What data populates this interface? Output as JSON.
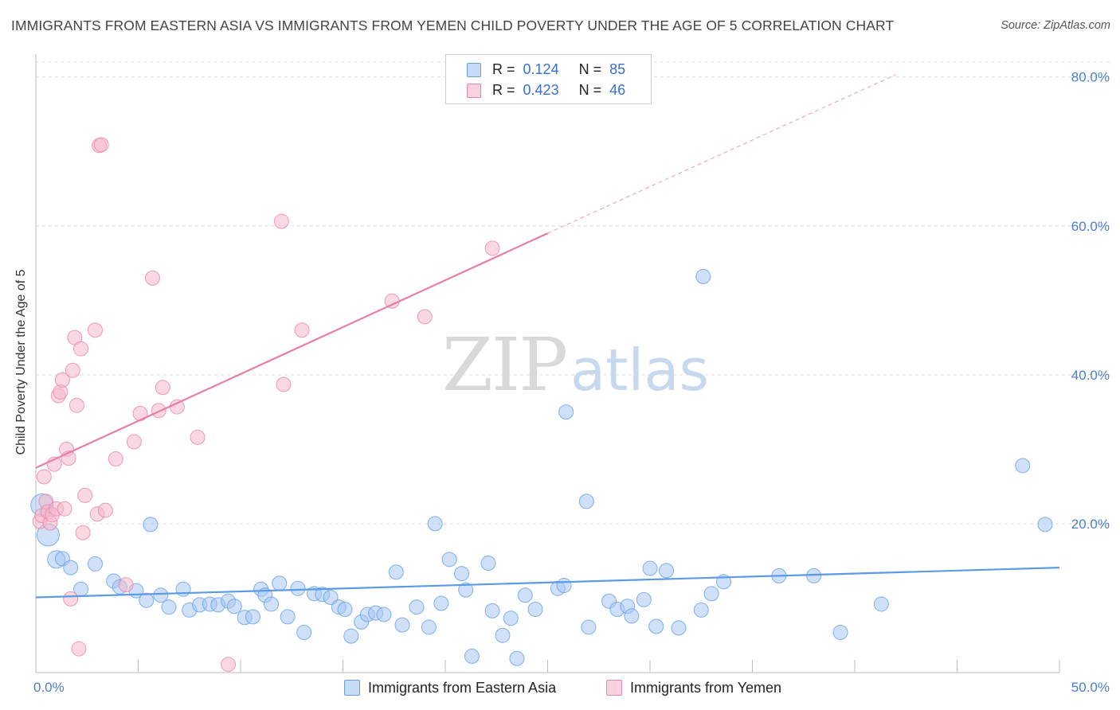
{
  "header": {
    "title": "IMMIGRANTS FROM EASTERN ASIA VS IMMIGRANTS FROM YEMEN CHILD POVERTY UNDER THE AGE OF 5 CORRELATION CHART",
    "source": "Source: ZipAtlas.com"
  },
  "watermark": {
    "zip": "ZIP",
    "atlas": "atlas"
  },
  "legend": {
    "rows": [
      {
        "r_label": "R =",
        "r_value": "0.124",
        "n_label": "N =",
        "n_value": "85",
        "color": "#a7c7f2"
      },
      {
        "r_label": "R =",
        "r_value": "0.423",
        "n_label": "N =",
        "n_value": "46",
        "color": "#f6b8cb"
      }
    ]
  },
  "bottom_legend": {
    "items": [
      {
        "label": "Immigrants from Eastern Asia",
        "color": "#a7c7f2"
      },
      {
        "label": "Immigrants from Yemen",
        "color": "#f6b8cb"
      }
    ]
  },
  "chart_data": {
    "type": "scatter",
    "title": "IMMIGRANTS FROM EASTERN ASIA VS IMMIGRANTS FROM YEMEN CHILD POVERTY UNDER THE AGE OF 5 CORRELATION CHART",
    "xlabel": "",
    "ylabel": "Child Poverty Under the Age of 5",
    "xlim": [
      0,
      50
    ],
    "ylim": [
      0,
      82
    ],
    "x_tick_labels": [
      "0.0%",
      "50.0%"
    ],
    "y_ticks": [
      20,
      40,
      60,
      80
    ],
    "y_tick_labels": [
      "20.0%",
      "40.0%",
      "60.0%",
      "80.0%"
    ],
    "grid": true,
    "legend_position": "top-center",
    "series": [
      {
        "name": "Immigrants from Eastern Asia",
        "color": "#5b9be6",
        "fill": "#a7c7f2",
        "r": 0.124,
        "n": 85,
        "trend": {
          "x": [
            0,
            50
          ],
          "y": [
            10.1,
            14.1
          ],
          "dashed_extension": false
        },
        "points": [
          [
            0.3,
            22.5,
            14
          ],
          [
            0.6,
            18.5,
            14
          ],
          [
            1.0,
            15.2,
            11
          ],
          [
            1.3,
            15.3,
            9
          ],
          [
            1.7,
            14.1,
            9
          ],
          [
            2.2,
            11.2,
            9
          ],
          [
            2.9,
            14.6,
            9
          ],
          [
            3.8,
            12.3,
            9
          ],
          [
            4.1,
            11.5,
            9
          ],
          [
            4.9,
            11.0,
            9
          ],
          [
            5.4,
            9.7,
            9
          ],
          [
            5.6,
            19.9,
            9
          ],
          [
            6.1,
            10.4,
            9
          ],
          [
            6.5,
            8.8,
            9
          ],
          [
            7.2,
            11.2,
            9
          ],
          [
            7.5,
            8.4,
            9
          ],
          [
            8.0,
            9.1,
            9
          ],
          [
            8.5,
            9.2,
            9
          ],
          [
            8.9,
            9.1,
            9
          ],
          [
            9.4,
            9.6,
            9
          ],
          [
            9.7,
            8.9,
            9
          ],
          [
            10.2,
            7.4,
            9
          ],
          [
            10.6,
            7.5,
            9
          ],
          [
            11.0,
            11.2,
            9
          ],
          [
            11.2,
            10.4,
            9
          ],
          [
            11.5,
            9.2,
            9
          ],
          [
            11.9,
            12.0,
            9
          ],
          [
            12.3,
            7.5,
            9
          ],
          [
            12.8,
            11.3,
            9
          ],
          [
            13.1,
            5.4,
            9
          ],
          [
            13.6,
            10.6,
            9
          ],
          [
            14.0,
            10.5,
            9
          ],
          [
            14.4,
            10.1,
            9
          ],
          [
            14.8,
            8.8,
            9
          ],
          [
            15.1,
            8.5,
            9
          ],
          [
            15.4,
            4.9,
            9
          ],
          [
            15.9,
            6.8,
            9
          ],
          [
            16.2,
            7.8,
            9
          ],
          [
            16.6,
            8.0,
            9
          ],
          [
            17.0,
            7.8,
            9
          ],
          [
            17.6,
            13.5,
            9
          ],
          [
            17.9,
            6.4,
            9
          ],
          [
            18.6,
            8.8,
            9
          ],
          [
            19.2,
            6.1,
            9
          ],
          [
            19.5,
            20.0,
            9
          ],
          [
            19.8,
            9.3,
            9
          ],
          [
            20.2,
            15.2,
            9
          ],
          [
            20.8,
            13.3,
            9
          ],
          [
            21.0,
            11.1,
            9
          ],
          [
            21.3,
            2.2,
            9
          ],
          [
            22.1,
            14.7,
            9
          ],
          [
            22.3,
            8.3,
            9
          ],
          [
            22.8,
            5.0,
            9
          ],
          [
            23.2,
            7.3,
            9
          ],
          [
            23.5,
            1.9,
            9
          ],
          [
            23.9,
            10.4,
            9
          ],
          [
            24.4,
            8.5,
            9
          ],
          [
            25.5,
            11.3,
            9
          ],
          [
            25.8,
            11.7,
            9
          ],
          [
            25.9,
            35.0,
            9
          ],
          [
            26.9,
            23.0,
            9
          ],
          [
            27.0,
            6.1,
            9
          ],
          [
            28.0,
            9.6,
            9
          ],
          [
            28.4,
            8.5,
            9
          ],
          [
            28.9,
            8.9,
            9
          ],
          [
            29.1,
            7.6,
            9
          ],
          [
            29.7,
            9.8,
            9
          ],
          [
            30.0,
            14.0,
            9
          ],
          [
            30.3,
            6.2,
            9
          ],
          [
            30.8,
            13.7,
            9
          ],
          [
            31.4,
            6.0,
            9
          ],
          [
            32.5,
            8.4,
            9
          ],
          [
            32.6,
            53.2,
            9
          ],
          [
            33.0,
            10.6,
            9
          ],
          [
            33.6,
            12.2,
            9
          ],
          [
            36.3,
            13.0,
            9
          ],
          [
            38.0,
            13.0,
            9
          ],
          [
            39.3,
            5.4,
            9
          ],
          [
            41.3,
            9.2,
            9
          ],
          [
            48.2,
            27.8,
            9
          ],
          [
            49.3,
            19.9,
            9
          ]
        ]
      },
      {
        "name": "Immigrants from Yemen",
        "color": "#e77fa3",
        "fill": "#f6b8cb",
        "r": 0.423,
        "n": 46,
        "trend": {
          "x": [
            0,
            25
          ],
          "y": [
            27.5,
            59.0
          ],
          "dashed_x": [
            25,
            42
          ],
          "dashed_y": [
            59.0,
            80.3
          ],
          "dashed_extension": true
        },
        "points": [
          [
            0.2,
            20.3,
            9
          ],
          [
            0.3,
            21.1,
            9
          ],
          [
            0.4,
            26.3,
            9
          ],
          [
            0.5,
            23.0,
            9
          ],
          [
            0.6,
            21.6,
            9
          ],
          [
            0.7,
            20.1,
            9
          ],
          [
            0.8,
            21.2,
            9
          ],
          [
            0.9,
            28.0,
            9
          ],
          [
            1.0,
            22.0,
            9
          ],
          [
            1.1,
            37.2,
            9
          ],
          [
            1.2,
            37.7,
            9
          ],
          [
            1.3,
            39.3,
            9
          ],
          [
            1.4,
            22.0,
            9
          ],
          [
            1.5,
            30.0,
            9
          ],
          [
            1.6,
            28.8,
            9
          ],
          [
            1.7,
            9.9,
            9
          ],
          [
            1.8,
            40.6,
            9
          ],
          [
            1.9,
            45.0,
            9
          ],
          [
            2.0,
            35.9,
            9
          ],
          [
            2.1,
            3.2,
            9
          ],
          [
            2.2,
            43.5,
            9
          ],
          [
            2.3,
            18.8,
            9
          ],
          [
            2.4,
            23.8,
            9
          ],
          [
            2.9,
            46.0,
            9
          ],
          [
            3.0,
            21.3,
            9
          ],
          [
            3.1,
            70.8,
            9
          ],
          [
            3.2,
            70.9,
            9
          ],
          [
            3.4,
            21.8,
            9
          ],
          [
            3.9,
            28.7,
            9
          ],
          [
            4.4,
            11.8,
            9
          ],
          [
            4.8,
            31.0,
            9
          ],
          [
            5.1,
            34.8,
            9
          ],
          [
            5.7,
            53.0,
            9
          ],
          [
            6.0,
            35.2,
            9
          ],
          [
            6.2,
            38.3,
            9
          ],
          [
            6.9,
            35.7,
            9
          ],
          [
            7.9,
            31.6,
            9
          ],
          [
            9.4,
            1.1,
            9
          ],
          [
            12.0,
            60.6,
            9
          ],
          [
            12.1,
            38.7,
            9
          ],
          [
            13.0,
            46.0,
            9
          ],
          [
            17.4,
            49.9,
            9
          ],
          [
            19.0,
            47.8,
            9
          ],
          [
            22.3,
            57.0,
            9
          ]
        ]
      }
    ]
  }
}
